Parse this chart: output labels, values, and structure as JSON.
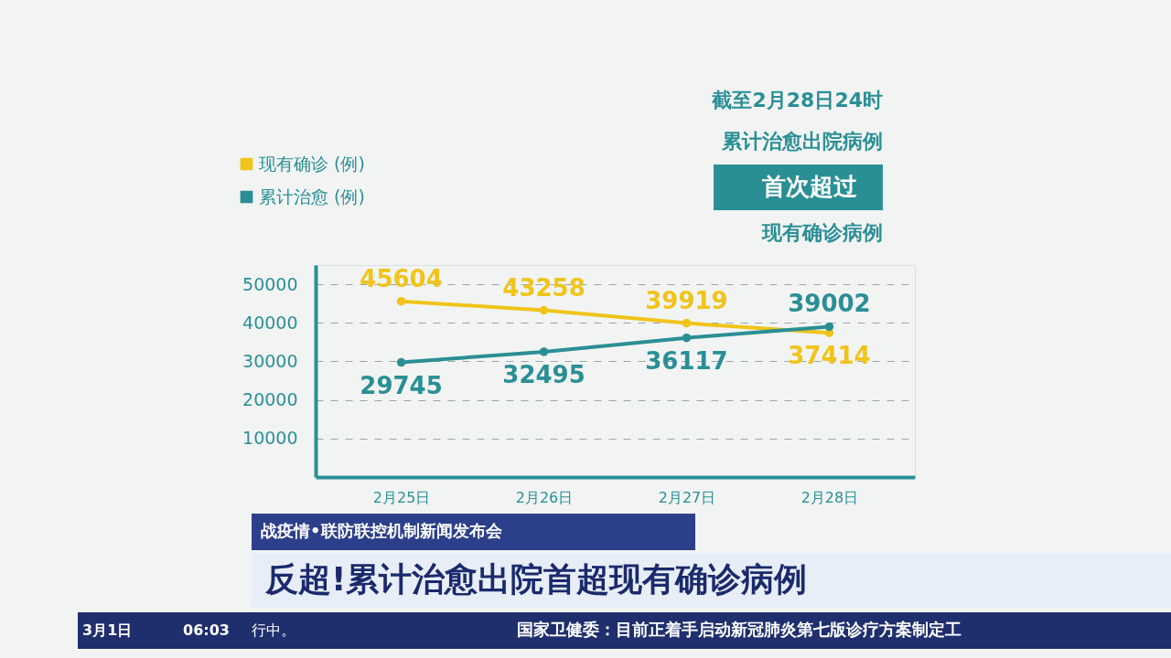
{
  "chart_data": {
    "type": "line",
    "categories": [
      "2月25日",
      "2月26日",
      "2月27日",
      "2月28日"
    ],
    "series": [
      {
        "name": "现有确诊 (例)",
        "color": "#f0c419",
        "values": [
          45604,
          43258,
          39919,
          37414
        ]
      },
      {
        "name": "累计治愈 (例)",
        "color": "#2a8f95",
        "values": [
          29745,
          32495,
          36117,
          39002
        ]
      }
    ],
    "ylim": [
      0,
      55000
    ],
    "yticks": [
      10000,
      20000,
      30000,
      40000,
      50000
    ],
    "grid": "y",
    "legend": "top left",
    "marker": "circle",
    "line_style": "solid",
    "data_labels": true,
    "annotations": [
      "截至2月28日24时",
      "累计治愈出院病例",
      "首次超过",
      "现有确诊病例",
      "战疫情•联防联控机制新闻发布会",
      "反超!累计治愈出院首超现有确诊病例",
      "3月1日",
      "06:03",
      "行中。",
      "国家卫健委：目前正着手启动新冠肺炎第七版诊疗方案制定工"
    ]
  }
}
